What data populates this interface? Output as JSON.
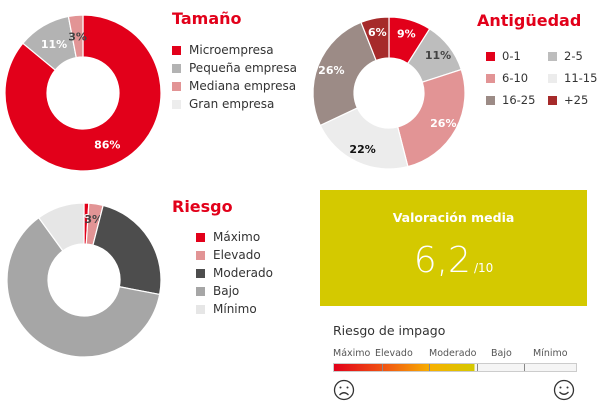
{
  "palette": {
    "accent": "#e2001a",
    "score_bg": "#d4c900"
  },
  "charts": {
    "tamano": {
      "title": "Tamaño",
      "legend": [
        "Microempresa",
        "Pequeña empresa",
        "Mediana empresa",
        "Gran empresa"
      ]
    },
    "antiguedad": {
      "title": "Antigüedad",
      "legend": [
        "0-1",
        "2-5",
        "6-10",
        "11-15",
        "16-25",
        "+25"
      ]
    },
    "riesgo": {
      "title": "Riesgo",
      "legend": [
        "Máximo",
        "Elevado",
        "Moderado",
        "Bajo",
        "Mínimo"
      ]
    }
  },
  "score": {
    "title": "Valoración media",
    "value": "6,2",
    "scale": "/10"
  },
  "risk_scale": {
    "title": "Riesgo de impago",
    "labels": [
      "Máximo",
      "Elevado",
      "Moderado",
      "Bajo",
      "Mínimo"
    ],
    "left_icon": "sad-face-icon",
    "right_icon": "happy-face-icon"
  },
  "chart_data": [
    {
      "type": "pie",
      "title": "Tamaño",
      "categories": [
        "Microempresa",
        "Pequeña empresa",
        "Mediana empresa",
        "Gran empresa"
      ],
      "values": [
        86,
        11,
        3,
        0
      ],
      "labels": [
        "86%",
        "11%",
        "3%",
        ""
      ],
      "colors": [
        "#e2001a",
        "#b3b3b3",
        "#e29495",
        "#ededed"
      ],
      "legend": "right"
    },
    {
      "type": "pie",
      "title": "Antigüedad",
      "categories": [
        "0-1",
        "2-5",
        "6-10",
        "11-15",
        "16-25",
        "+25"
      ],
      "values": [
        9,
        11,
        26,
        22,
        26,
        6
      ],
      "labels": [
        "9%",
        "11%",
        "26%",
        "22%",
        "26%",
        "6%"
      ],
      "colors": [
        "#e2001a",
        "#bdbdbd",
        "#e29495",
        "#ececec",
        "#9c8b86",
        "#a62a2a"
      ],
      "legend": "top-right"
    },
    {
      "type": "pie",
      "title": "Riesgo",
      "categories": [
        "Máximo",
        "Elevado",
        "Moderado",
        "Bajo",
        "Mínimo"
      ],
      "values": [
        1,
        3,
        24,
        62,
        10
      ],
      "labels": [
        "1%",
        "3%",
        "",
        "",
        ""
      ],
      "colors": [
        "#e2001a",
        "#e29495",
        "#4d4d4d",
        "#a6a6a6",
        "#e6e6e6"
      ],
      "legend": "right"
    }
  ]
}
